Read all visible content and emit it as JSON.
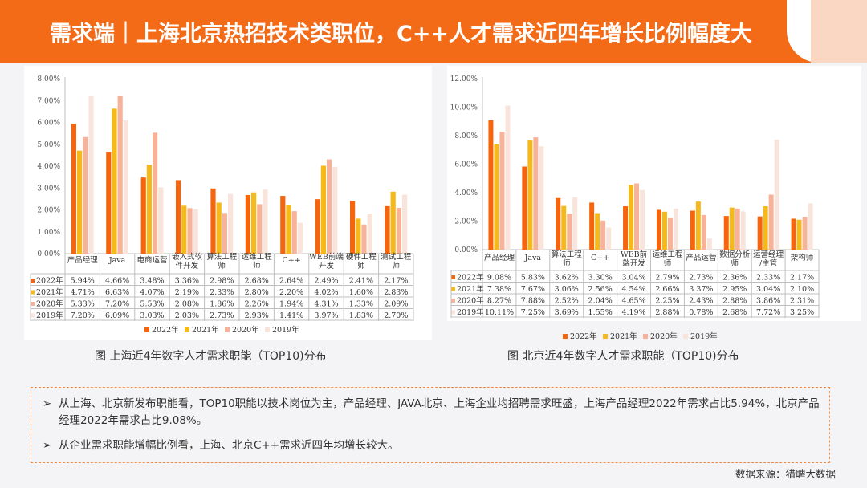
{
  "title": "需求端｜上海北京热招技术类职位，C++人才需求近四年增长比例幅度大",
  "colors": {
    "2022年": "#f5650d",
    "2021年": "#f5b91a",
    "2020年": "#f6b39a",
    "2019年": "#f9e4dc",
    "header": "#f36a17"
  },
  "captions": {
    "shanghai": "图 上海近4年数字人才需求职能（TOP10)分布",
    "beijing": "图 北京近4年数字人才需求职能（TOP10)分布"
  },
  "notes": [
    "从上海、北京新发布职能看，TOP10职能以技术岗位为主，产品经理、JAVA北京、上海企业均招聘需求旺盛，上海产品经理2022年需求占比5.94%，北京产品经理2022年需求占比9.08%。",
    "从企业需求职能增幅比例看，上海、北京C++需求近四年均增长较大。"
  ],
  "source": "数据来源：猎聘大数据",
  "chart_data": [
    {
      "type": "bar",
      "id": "shanghai",
      "categories": [
        "产品经理",
        "Java",
        "电商运营",
        "嵌入式软件开发",
        "算法工程师",
        "运维工程师",
        "C++",
        "WEB前端开发",
        "硬件工程师",
        "测试工程师"
      ],
      "category_lines": [
        [
          "产品经理"
        ],
        [
          "Java"
        ],
        [
          "电商运营"
        ],
        [
          "嵌入式软",
          "件开发"
        ],
        [
          "算法工程",
          "师"
        ],
        [
          "运维工程",
          "师"
        ],
        [
          "C++"
        ],
        [
          "WEB前端",
          "开发"
        ],
        [
          "硬件工程",
          "师"
        ],
        [
          "测试工程",
          "师"
        ]
      ],
      "series": [
        {
          "name": "2022年",
          "values": [
            5.94,
            4.66,
            3.48,
            3.36,
            2.98,
            2.68,
            2.64,
            2.49,
            2.41,
            2.17
          ],
          "labels": [
            "5.94%",
            "4.66%",
            "3.48%",
            "3.36%",
            "2.98%",
            "2.68%",
            "2.64%",
            "2.49%",
            "2.41%",
            "2.17%"
          ]
        },
        {
          "name": "2021年",
          "values": [
            4.71,
            6.63,
            4.07,
            2.19,
            2.33,
            2.8,
            2.2,
            4.02,
            1.6,
            2.83
          ],
          "labels": [
            "4.71%",
            "6.63%",
            "4.07%",
            "2.19%",
            "2.33%",
            "2.80%",
            "2.20%",
            "4.02%",
            "1.60%",
            "2.83%"
          ]
        },
        {
          "name": "2020年",
          "values": [
            5.33,
            7.2,
            5.53,
            2.08,
            1.86,
            2.26,
            1.94,
            4.31,
            1.33,
            2.09
          ],
          "labels": [
            "5.33%",
            "7.20%",
            "5.53%",
            "2.08%",
            "1.86%",
            "2.26%",
            "1.94%",
            "4.31%",
            "1.33%",
            "2.09%"
          ]
        },
        {
          "name": "2019年",
          "values": [
            7.2,
            6.09,
            3.03,
            2.03,
            2.73,
            2.93,
            1.41,
            3.97,
            1.83,
            2.7
          ],
          "labels": [
            "7.20%",
            "6.09%",
            "3.03%",
            "2.03%",
            "2.73%",
            "2.93%",
            "1.41%",
            "3.97%",
            "1.83%",
            "2.70%"
          ]
        }
      ],
      "yticks": [
        "0.00%",
        "1.00%",
        "2.00%",
        "3.00%",
        "4.00%",
        "5.00%",
        "6.00%",
        "7.00%",
        "8.00%"
      ],
      "ylim": [
        0,
        8
      ],
      "legend": [
        "2022年",
        "2021年",
        "2020年",
        "2019年"
      ],
      "legend_position": "bottom"
    },
    {
      "type": "bar",
      "id": "beijing",
      "categories": [
        "产品经理",
        "Java",
        "算法工程师",
        "C++",
        "WEB前端开发",
        "运维工程师",
        "产品运营",
        "数据分析师",
        "运营经理/主管",
        "架构师"
      ],
      "category_lines": [
        [
          "产品经理"
        ],
        [
          "Java"
        ],
        [
          "算法工程",
          "师"
        ],
        [
          "C++"
        ],
        [
          "WEB前",
          "端开发"
        ],
        [
          "运维工程",
          "师"
        ],
        [
          "产品运营"
        ],
        [
          "数据分析",
          "师"
        ],
        [
          "运营经理",
          "/主管"
        ],
        [
          "架构师"
        ]
      ],
      "series": [
        {
          "name": "2022年",
          "values": [
            9.08,
            5.83,
            3.62,
            3.3,
            3.04,
            2.79,
            2.73,
            2.36,
            2.33,
            2.17
          ],
          "labels": [
            "9.08%",
            "5.83%",
            "3.62%",
            "3.30%",
            "3.04%",
            "2.79%",
            "2.73%",
            "2.36%",
            "2.33%",
            "2.17%"
          ]
        },
        {
          "name": "2021年",
          "values": [
            7.38,
            7.67,
            3.06,
            2.56,
            4.54,
            2.66,
            3.37,
            2.95,
            3.04,
            2.1
          ],
          "labels": [
            "7.38%",
            "7.67%",
            "3.06%",
            "2.56%",
            "4.54%",
            "2.66%",
            "3.37%",
            "2.95%",
            "3.04%",
            "2.10%"
          ]
        },
        {
          "name": "2020年",
          "values": [
            8.27,
            7.88,
            2.52,
            2.04,
            4.65,
            2.25,
            2.43,
            2.88,
            3.86,
            2.31
          ],
          "labels": [
            "8.27%",
            "7.88%",
            "2.52%",
            "2.04%",
            "4.65%",
            "2.25%",
            "2.43%",
            "2.88%",
            "3.86%",
            "2.31%"
          ]
        },
        {
          "name": "2019年",
          "values": [
            10.11,
            7.25,
            3.69,
            1.55,
            4.19,
            2.88,
            0.78,
            2.68,
            7.72,
            3.25
          ],
          "labels": [
            "10.11%",
            "7.25%",
            "3.69%",
            "1.55%",
            "4.19%",
            "2.88%",
            "0.78%",
            "2.68%",
            "7.72%",
            "3.25%"
          ]
        }
      ],
      "yticks": [
        "0.00%",
        "2.00%",
        "4.00%",
        "6.00%",
        "8.00%",
        "10.00%",
        "12.00%"
      ],
      "ylim": [
        0,
        12
      ],
      "legend": [
        "2022年",
        "2021年",
        "2020年",
        "2019年"
      ],
      "legend_position": "bottom"
    }
  ]
}
